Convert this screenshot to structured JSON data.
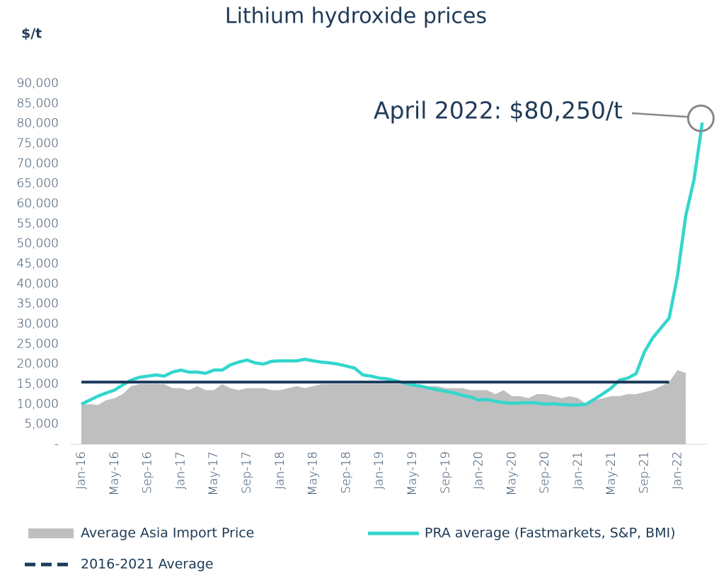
{
  "chart_data": {
    "type": "line",
    "title": "Lithium hydroxide prices",
    "y_label": "$/t",
    "annotation": "April 2022: $80,250/t",
    "categories": [
      "Jan-16",
      null,
      null,
      null,
      "May-16",
      null,
      null,
      null,
      "Sep-16",
      null,
      null,
      null,
      "Jan-17",
      null,
      null,
      null,
      "May-17",
      null,
      null,
      null,
      "Sep-17",
      null,
      null,
      null,
      "Jan-18",
      null,
      null,
      null,
      "May-18",
      null,
      null,
      null,
      "Sep-18",
      null,
      null,
      null,
      "Jan-19",
      null,
      null,
      null,
      "May-19",
      null,
      null,
      null,
      "Sep-19",
      null,
      null,
      null,
      "Jan-20",
      null,
      null,
      null,
      "May-20",
      null,
      null,
      null,
      "Sep-20",
      null,
      null,
      null,
      "Jan-21",
      null,
      null,
      null,
      "May-21",
      null,
      null,
      null,
      "Sep-21",
      null,
      null,
      null,
      "Jan-22",
      null,
      null,
      null
    ],
    "series": [
      {
        "name": "Average Asia Import Price",
        "kind": "area",
        "color": "#bfbfbf",
        "values": [
          10000,
          10000,
          9800,
          11000,
          11500,
          12500,
          14500,
          15000,
          15000,
          15000,
          15000,
          14000,
          14000,
          13500,
          14500,
          13500,
          13500,
          15000,
          14000,
          13500,
          14000,
          14000,
          14000,
          13500,
          13500,
          14000,
          14500,
          14000,
          14500,
          15000,
          15000,
          15000,
          15000,
          15000,
          15000,
          15000,
          15000,
          15000,
          15000,
          15000,
          14500,
          14500,
          14500,
          14500,
          14000,
          14000,
          14000,
          13500,
          13500,
          13500,
          12500,
          13500,
          12000,
          12000,
          11500,
          12500,
          12500,
          12000,
          11500,
          12000,
          11500,
          10000,
          11000,
          11500,
          12000,
          12000,
          12500,
          12500,
          13000,
          13500,
          14500,
          15500,
          18500,
          17800,
          null,
          null
        ]
      },
      {
        "name": "PRA average (Fastmarkets, S&P, BMI)",
        "kind": "line",
        "color": "#33d6cc",
        "values": [
          10000,
          11000,
          12000,
          12800,
          13500,
          14800,
          16000,
          16700,
          17000,
          17300,
          17000,
          18000,
          18500,
          18000,
          18000,
          17700,
          18500,
          18500,
          19800,
          20500,
          21000,
          20300,
          20000,
          20700,
          20800,
          20800,
          20800,
          21200,
          20800,
          20500,
          20300,
          20000,
          19500,
          19000,
          17300,
          17000,
          16500,
          16300,
          15800,
          15300,
          14800,
          14500,
          14000,
          13600,
          13200,
          12800,
          12200,
          11800,
          11000,
          11200,
          10700,
          10400,
          10200,
          10300,
          10400,
          10300,
          10000,
          10100,
          9900,
          9800,
          9800,
          10000,
          11300,
          12600,
          14000,
          16000,
          16500,
          17600,
          23000,
          26500,
          29000,
          31500,
          42000,
          57000,
          66000,
          80250
        ]
      },
      {
        "name": "2016-2021 Average",
        "kind": "dashed",
        "color": "#1b3a5c",
        "values": [
          15500,
          15500,
          15500,
          15500,
          15500,
          15500,
          15500,
          15500,
          15500,
          15500,
          15500,
          15500,
          15500,
          15500,
          15500,
          15500,
          15500,
          15500,
          15500,
          15500,
          15500,
          15500,
          15500,
          15500,
          15500,
          15500,
          15500,
          15500,
          15500,
          15500,
          15500,
          15500,
          15500,
          15500,
          15500,
          15500,
          15500,
          15500,
          15500,
          15500,
          15500,
          15500,
          15500,
          15500,
          15500,
          15500,
          15500,
          15500,
          15500,
          15500,
          15500,
          15500,
          15500,
          15500,
          15500,
          15500,
          15500,
          15500,
          15500,
          15500,
          15500,
          15500,
          15500,
          15500,
          15500,
          15500,
          15500,
          15500,
          15500,
          15500,
          15500,
          15500,
          null,
          null,
          null,
          null
        ]
      }
    ],
    "ylim": [
      0,
      90000
    ],
    "yticks": [
      {
        "value": 0,
        "label": "-"
      },
      {
        "value": 5000,
        "label": "5,000"
      },
      {
        "value": 10000,
        "label": "10,000"
      },
      {
        "value": 15000,
        "label": "15,000"
      },
      {
        "value": 20000,
        "label": "20,000"
      },
      {
        "value": 25000,
        "label": "25,000"
      },
      {
        "value": 30000,
        "label": "30,000"
      },
      {
        "value": 35000,
        "label": "35,000"
      },
      {
        "value": 40000,
        "label": "40,000"
      },
      {
        "value": 45000,
        "label": "45,000"
      },
      {
        "value": 50000,
        "label": "50,000"
      },
      {
        "value": 55000,
        "label": "55,000"
      },
      {
        "value": 60000,
        "label": "60,000"
      },
      {
        "value": 65000,
        "label": "65,000"
      },
      {
        "value": 70000,
        "label": "70,000"
      },
      {
        "value": 75000,
        "label": "75,000"
      },
      {
        "value": 80000,
        "label": "80,000"
      },
      {
        "value": 85000,
        "label": "85,000"
      },
      {
        "value": 90000,
        "label": "90,000"
      }
    ],
    "grid": false
  }
}
